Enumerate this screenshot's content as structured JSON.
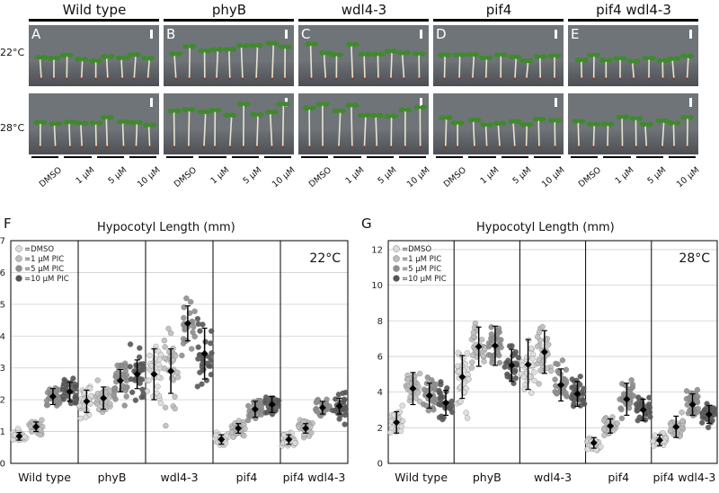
{
  "figure": {
    "top": {
      "genotypes": [
        "Wild type",
        "phyB",
        "wdl4-3",
        "pif4",
        "pif4 wdl4-3"
      ],
      "panel_letters": [
        "A",
        "B",
        "C",
        "D",
        "E"
      ],
      "temperatures": [
        "22°C",
        "28°C"
      ],
      "treatments": [
        "DMSO",
        "1 μM",
        "5 μM",
        "10 μM"
      ]
    }
  },
  "chart_data": [
    {
      "panel": "F",
      "type": "scatter",
      "title": "Hypocotyl Length (mm)",
      "annotation": "22°C",
      "ylim": [
        0,
        7
      ],
      "yticks": [
        0,
        1,
        2,
        3,
        4,
        5,
        6,
        7
      ],
      "grid": true,
      "legend_position": "top-left",
      "legend": [
        "=DMSO",
        "=1 μM PIC",
        "=5 μM PIC",
        "=10 μM PIC"
      ],
      "categories": [
        "Wild type",
        "phyB",
        "wdl4-3",
        "pif4",
        "pif4 wdl4-3"
      ],
      "series": [
        {
          "name": "=DMSO",
          "color": "#dcdcdc",
          "mean": [
            0.85,
            1.95,
            2.8,
            0.75,
            0.75
          ],
          "sd": [
            0.12,
            0.35,
            0.8,
            0.15,
            0.15
          ],
          "spread": [
            0.3,
            0.8,
            1.8,
            0.4,
            0.4
          ]
        },
        {
          "name": "=1 μM PIC",
          "color": "#bdbdbd",
          "mean": [
            1.15,
            2.05,
            2.9,
            1.1,
            1.1
          ],
          "sd": [
            0.15,
            0.35,
            0.7,
            0.15,
            0.15
          ],
          "spread": [
            0.35,
            0.9,
            1.9,
            0.4,
            0.4
          ]
        },
        {
          "name": "=5 μM PIC",
          "color": "#8f8f8f",
          "mean": [
            2.1,
            2.6,
            4.4,
            1.7,
            1.75
          ],
          "sd": [
            0.25,
            0.35,
            0.55,
            0.25,
            0.2
          ],
          "spread": [
            0.6,
            0.9,
            1.3,
            0.6,
            0.5
          ]
        },
        {
          "name": "=10 μM PIC",
          "color": "#555555",
          "mean": [
            2.25,
            2.8,
            3.45,
            1.85,
            1.8
          ],
          "sd": [
            0.3,
            0.45,
            0.8,
            0.25,
            0.25
          ],
          "spread": [
            0.8,
            1.3,
            2.0,
            0.55,
            0.7
          ]
        }
      ]
    },
    {
      "panel": "G",
      "type": "scatter",
      "title": "Hypocotyl Length (mm)",
      "annotation": "28°C",
      "ylim": [
        0,
        12.5
      ],
      "yticks": [
        0,
        2,
        4,
        6,
        8,
        10,
        12
      ],
      "grid": true,
      "legend_position": "top-left",
      "legend": [
        "=DMSO",
        "=1 μM PIC",
        "=5 μM PIC",
        "=10 μM PIC"
      ],
      "categories": [
        "Wild type",
        "phyB",
        "wdl4-3",
        "pif4",
        "pif4 wdl4-3"
      ],
      "series": [
        {
          "name": "=DMSO",
          "color": "#dcdcdc",
          "mean": [
            2.3,
            4.85,
            5.55,
            1.15,
            1.3
          ],
          "sd": [
            0.6,
            1.2,
            1.4,
            0.3,
            0.3
          ],
          "spread": [
            1.3,
            2.8,
            3.0,
            0.6,
            0.6
          ]
        },
        {
          "name": "=1 μM PIC",
          "color": "#bdbdbd",
          "mean": [
            4.2,
            6.55,
            6.25,
            2.1,
            2.05
          ],
          "sd": [
            0.9,
            1.1,
            1.2,
            0.4,
            0.6
          ],
          "spread": [
            2.0,
            2.5,
            3.0,
            1.0,
            1.2
          ]
        },
        {
          "name": "=5 μM PIC",
          "color": "#8f8f8f",
          "mean": [
            3.8,
            6.6,
            4.4,
            3.6,
            3.3
          ],
          "sd": [
            0.7,
            1.1,
            0.9,
            0.9,
            0.6
          ],
          "spread": [
            1.6,
            2.3,
            2.2,
            1.7,
            1.4
          ]
        },
        {
          "name": "=10 μM PIC",
          "color": "#555555",
          "mean": [
            3.4,
            5.5,
            3.9,
            3.0,
            2.75
          ],
          "sd": [
            0.7,
            0.9,
            0.7,
            0.6,
            0.5
          ],
          "spread": [
            1.6,
            1.8,
            1.5,
            1.2,
            1.0
          ]
        }
      ]
    }
  ]
}
